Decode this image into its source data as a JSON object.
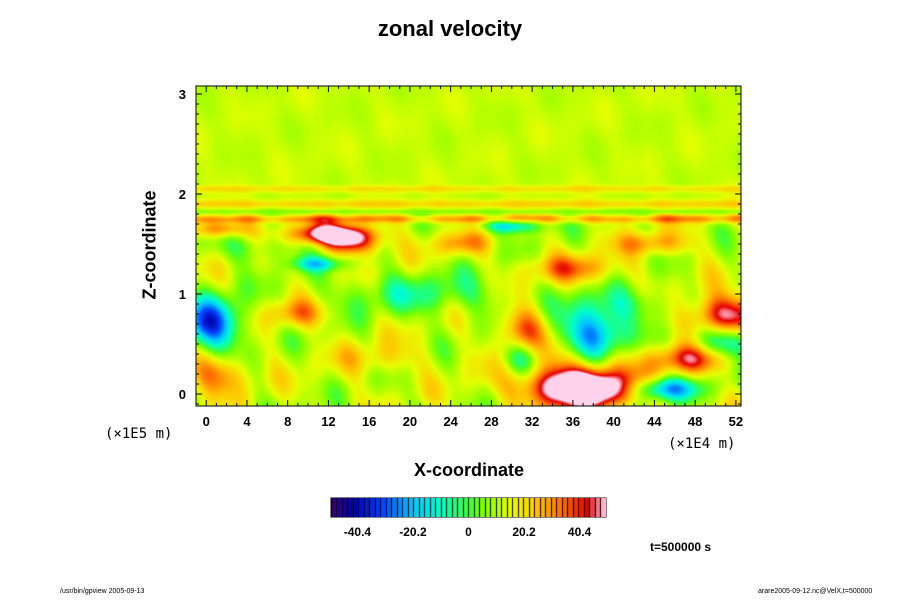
{
  "chart_data": {
    "type": "heatmap",
    "title": "zonal velocity",
    "xlabel": "X-coordinate",
    "ylabel": "Z-coordinate",
    "x_scale_note": "(×1E4 m)",
    "y_scale_note": "(×1E5 m)",
    "xlim": [
      -1,
      52.5
    ],
    "ylim": [
      -0.12,
      3.08
    ],
    "x_ticks": [
      "0",
      "4",
      "8",
      "12",
      "16",
      "20",
      "24",
      "28",
      "32",
      "36",
      "40",
      "44",
      "48",
      "52"
    ],
    "y_ticks": [
      "0",
      "1",
      "2",
      "3"
    ],
    "colorbar": {
      "range": [
        -50,
        50
      ],
      "tick_labels": [
        "-40.4",
        "-20.2",
        "0",
        "20.2",
        "40.4"
      ],
      "tick_values": [
        -40.4,
        -20.2,
        0,
        20.2,
        40.4
      ]
    },
    "time_label": "t=500000 s",
    "features": [
      {
        "x": 37,
        "z": 0.05,
        "sx": 3.2,
        "sz": 0.12,
        "value": 55
      },
      {
        "x": 36,
        "z": 0.2,
        "sx": 4.5,
        "sz": 0.22,
        "value": 22
      },
      {
        "x": 38,
        "z": 0.6,
        "sx": 2.2,
        "sz": 0.2,
        "value": -42
      },
      {
        "x": 0.5,
        "z": 0.7,
        "sx": 2.0,
        "sz": 0.18,
        "value": -45
      },
      {
        "x": 51,
        "z": 0.75,
        "sx": 2.4,
        "sz": 0.15,
        "value": 48
      },
      {
        "x": 51,
        "z": 0.55,
        "sx": 2.0,
        "sz": 0.15,
        "value": -38
      },
      {
        "x": 12.5,
        "z": 1.6,
        "sx": 2.6,
        "sz": 0.07,
        "value": 48
      },
      {
        "x": 14.5,
        "z": 1.5,
        "sx": 1.8,
        "sz": 0.08,
        "value": 30
      },
      {
        "x": 1.5,
        "z": 1.65,
        "sx": 2.0,
        "sz": 0.06,
        "value": 25
      },
      {
        "x": 11,
        "z": 1.3,
        "sx": 1.8,
        "sz": 0.05,
        "value": -22
      },
      {
        "x": 30,
        "z": 1.68,
        "sx": 2.0,
        "sz": 0.05,
        "value": -28
      },
      {
        "x": 45,
        "z": 0.05,
        "sx": 2.4,
        "sz": 0.08,
        "value": -35
      },
      {
        "x": 1,
        "z": 0.2,
        "sx": 2.0,
        "sz": 0.14,
        "value": 22
      },
      {
        "x": 48,
        "z": 0.35,
        "sx": 3.0,
        "sz": 0.1,
        "value": 28
      },
      {
        "x": 31,
        "z": 0.35,
        "sx": 1.5,
        "sz": 0.12,
        "value": -25
      },
      {
        "x": 31,
        "z": 0.65,
        "sx": 1.5,
        "sz": 0.15,
        "value": 25
      },
      {
        "x": 21,
        "z": 1.0,
        "sx": 6.0,
        "sz": 0.15,
        "value": -14
      },
      {
        "x": 36,
        "z": 1.25,
        "sx": 3.0,
        "sz": 0.1,
        "value": 20
      },
      {
        "x": 25,
        "z": 1.5,
        "sx": 2.0,
        "sz": 0.08,
        "value": 16
      },
      {
        "x": 44,
        "z": 1.5,
        "sx": 2.5,
        "sz": 0.08,
        "value": 18
      },
      {
        "x": 9,
        "z": 0.8,
        "sx": 2.0,
        "sz": 0.1,
        "value": 18
      },
      {
        "x": 5,
        "z": 1.45,
        "sx": 3.0,
        "sz": 0.1,
        "value": -10
      },
      {
        "x": 42,
        "z": 0.9,
        "sx": 3.0,
        "sz": 0.12,
        "value": -12
      },
      {
        "x": 17,
        "z": 0.35,
        "sx": 3.0,
        "sz": 0.12,
        "value": 10
      }
    ],
    "bands": [
      {
        "z": 1.75,
        "sz": 0.03,
        "value": 16
      },
      {
        "z": 1.9,
        "sz": 0.03,
        "value": 10
      },
      {
        "z": 2.05,
        "sz": 0.025,
        "value": 8
      },
      {
        "z": 1.82,
        "sz": 0.02,
        "value": -6
      }
    ],
    "grid": false
  },
  "footer": {
    "left": "/usr/bin/gpview 2005-09-13",
    "right": "arare2005-09-12.nc@VelX,t=500000"
  }
}
